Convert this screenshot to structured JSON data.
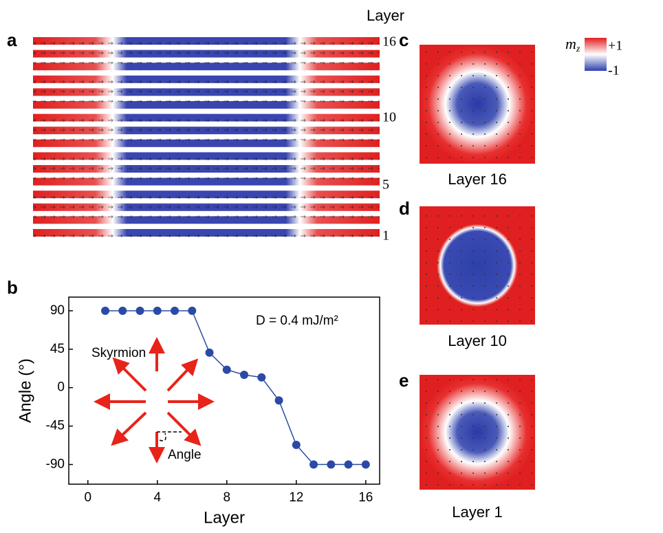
{
  "chart_data": {
    "type": "line",
    "x": [
      1,
      2,
      3,
      4,
      5,
      6,
      7,
      8,
      9,
      10,
      11,
      12,
      13,
      14,
      15,
      16
    ],
    "values": [
      90,
      90,
      90,
      90,
      90,
      90,
      41,
      21,
      15,
      12,
      -15,
      -67,
      -90,
      -90,
      -90,
      -90
    ],
    "color": "#2b4aa6",
    "xlim": [
      -1.1,
      16.8
    ],
    "ylim": [
      -113,
      106
    ],
    "xticks": [
      0,
      4,
      8,
      12,
      16
    ],
    "yticks": [
      -90,
      -45,
      0,
      45,
      90
    ],
    "xlabel": "Layer",
    "ylabel": "Angle (°)",
    "annotations": [
      "D = 0.4 mJ/m²",
      "Skyrmion",
      "Angle"
    ]
  },
  "figure": {
    "panel_labels": [
      "a",
      "b",
      "c",
      "d",
      "e"
    ],
    "panel_a": {
      "axis_title": "Layer",
      "layer_labels": [
        "16",
        "10",
        "5",
        "1"
      ]
    },
    "colorbar": {
      "label": "m",
      "subscript": "z",
      "max": "+1",
      "min": "-1"
    },
    "captions": [
      "Layer 16",
      "Layer 10",
      "Layer 1"
    ]
  }
}
